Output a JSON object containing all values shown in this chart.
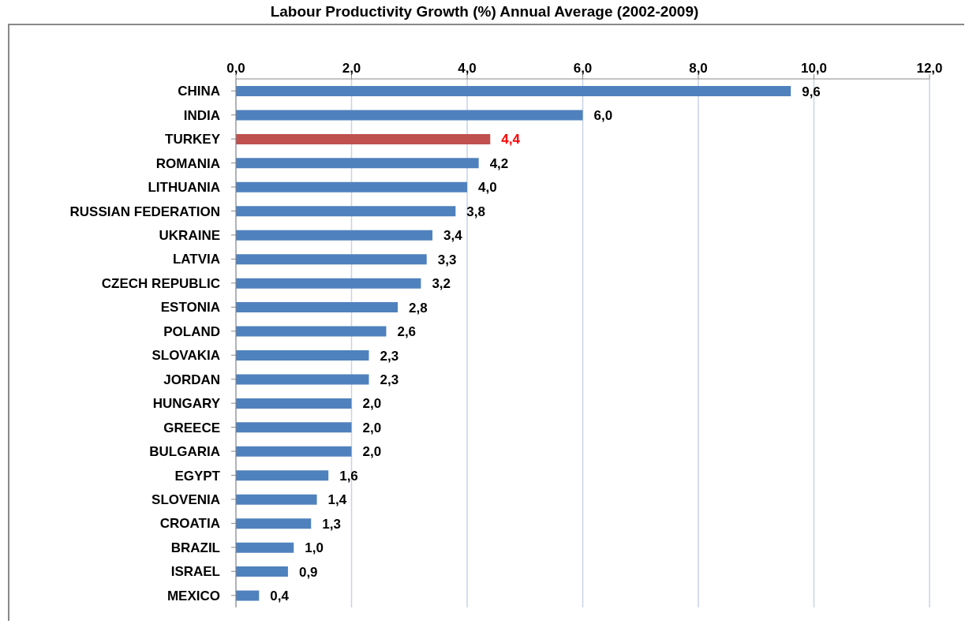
{
  "chart_data": {
    "type": "bar",
    "orientation": "horizontal",
    "title": "Labour Productivity Growth (%) Annual Average (2002-2009)",
    "categories": [
      "CHINA",
      "INDIA",
      "TURKEY",
      "ROMANIA",
      "LITHUANIA",
      "RUSSIAN FEDERATION",
      "UKRAINE",
      "LATVIA",
      "CZECH REPUBLIC",
      "ESTONIA",
      "POLAND",
      "SLOVAKIA",
      "JORDAN",
      "HUNGARY",
      "GREECE",
      "BULGARIA",
      "EGYPT",
      "SLOVENIA",
      "CROATIA",
      "BRAZIL",
      "ISRAEL",
      "MEXICO"
    ],
    "values": [
      9.6,
      6.0,
      4.4,
      4.2,
      4.0,
      3.8,
      3.4,
      3.3,
      3.2,
      2.8,
      2.6,
      2.3,
      2.3,
      2.0,
      2.0,
      2.0,
      1.6,
      1.4,
      1.3,
      1.0,
      0.9,
      0.4
    ],
    "value_labels": [
      "9,6",
      "6,0",
      "4,4",
      "4,2",
      "4,0",
      "3,8",
      "3,4",
      "3,3",
      "3,2",
      "2,8",
      "2,6",
      "2,3",
      "2,3",
      "2,0",
      "2,0",
      "2,0",
      "1,6",
      "1,4",
      "1,3",
      "1,0",
      "0,9",
      "0,4"
    ],
    "colors": [
      "#4f81bd",
      "#4f81bd",
      "#c0504d",
      "#4f81bd",
      "#4f81bd",
      "#4f81bd",
      "#4f81bd",
      "#4f81bd",
      "#4f81bd",
      "#4f81bd",
      "#4f81bd",
      "#4f81bd",
      "#4f81bd",
      "#4f81bd",
      "#4f81bd",
      "#4f81bd",
      "#4f81bd",
      "#4f81bd",
      "#4f81bd",
      "#4f81bd",
      "#4f81bd",
      "#4f81bd"
    ],
    "xlim": [
      0,
      12
    ],
    "xticks": [
      {
        "value": 0,
        "label": "0,0"
      },
      {
        "value": 2,
        "label": "2,0"
      },
      {
        "value": 4,
        "label": "4,0"
      },
      {
        "value": 6,
        "label": "6,0"
      },
      {
        "value": 8,
        "label": "8,0"
      },
      {
        "value": 10,
        "label": "10,0"
      },
      {
        "value": 12,
        "label": "12,0"
      }
    ],
    "grid": "x",
    "legend": false
  }
}
